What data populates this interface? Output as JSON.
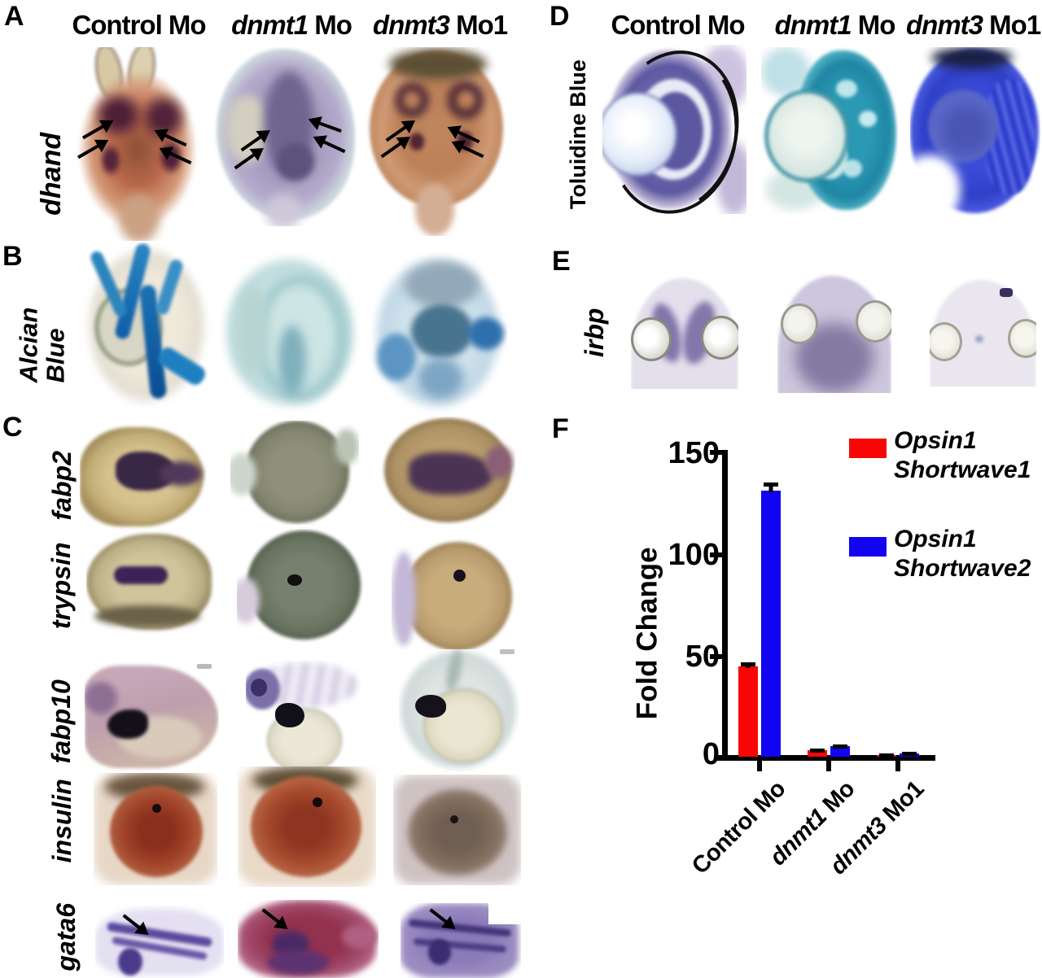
{
  "figure": {
    "panels": {
      "A": {
        "letter": "A",
        "row_label": "dhand"
      },
      "B": {
        "letter": "B",
        "row_label": "Alcian Blue"
      },
      "C": {
        "letter": "C",
        "row_labels": [
          "fabp2",
          "trypsin",
          "fabp10",
          "insulin",
          "gata6"
        ]
      },
      "D": {
        "letter": "D",
        "row_label": "Toluidine Blue"
      },
      "E": {
        "letter": "E",
        "row_label": "irbp"
      },
      "F": {
        "letter": "F"
      }
    },
    "column_headers": [
      {
        "italic": "",
        "roman": "Control Mo"
      },
      {
        "italic": "dnmt1",
        "roman": " Mo"
      },
      {
        "italic": "dnmt3",
        "roman": " Mo1"
      }
    ]
  },
  "chart_data": {
    "type": "bar",
    "title": "",
    "xlabel": "",
    "ylabel": "Fold Change",
    "ylim": [
      0,
      150
    ],
    "yticks": [
      0,
      50,
      100,
      150
    ],
    "grid": false,
    "legend_position": "upper right",
    "categories": [
      "Control Mo",
      "dnmt1 Mo",
      "dnmt3 Mo1"
    ],
    "categories_fmt": [
      {
        "italic": "",
        "roman": "Control Mo"
      },
      {
        "italic": "dnmt1",
        "roman": " Mo"
      },
      {
        "italic": "dnmt3",
        "roman": " Mo1"
      }
    ],
    "series": [
      {
        "name": "Opsin1 Shortwave1",
        "label_lines": [
          "Opsin1",
          "Shortwave1"
        ],
        "color": "#fa0505",
        "values": [
          44,
          3,
          0.8
        ],
        "errors": [
          3,
          1,
          0.4
        ]
      },
      {
        "name": "Opsin1 Shortwave2",
        "label_lines": [
          "Opsin1",
          "Shortwave2"
        ],
        "color": "#1203f0",
        "values": [
          130,
          5,
          1.5
        ],
        "errors": [
          5,
          1.5,
          0.5
        ]
      }
    ]
  }
}
